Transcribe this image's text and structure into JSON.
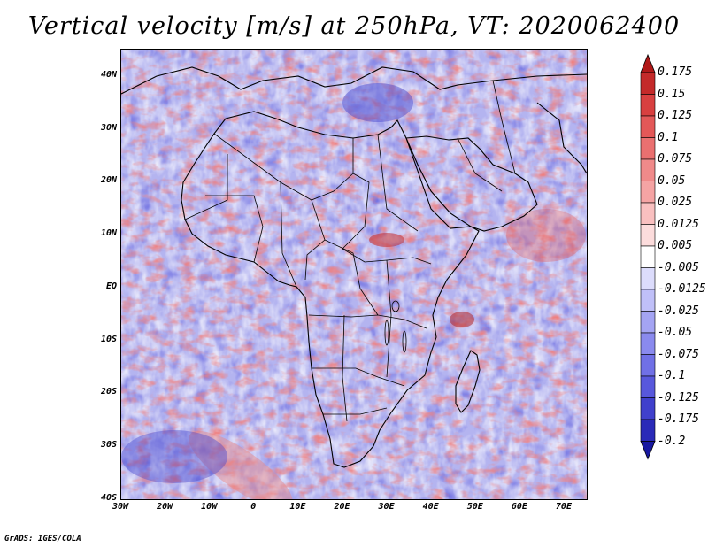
{
  "title": "Vertical velocity [m/s] at 250hPa, VT: 2020062400",
  "footer": "GrADS: IGES/COLA",
  "map": {
    "lat_labels": [
      "40N",
      "30N",
      "20N",
      "10N",
      "EQ",
      "10S",
      "20S",
      "30S",
      "40S"
    ],
    "lon_labels": [
      "30W",
      "20W",
      "10W",
      "0",
      "10E",
      "20E",
      "30E",
      "40E",
      "50E",
      "60E",
      "70E"
    ],
    "lat_range": [
      -40,
      45
    ],
    "lon_range": [
      -30,
      75
    ]
  },
  "colorbar": {
    "labels": [
      "0.175",
      "0.15",
      "0.125",
      "0.1",
      "0.075",
      "0.05",
      "0.025",
      "0.0125",
      "0.005",
      "-0.005",
      "-0.0125",
      "-0.025",
      "-0.05",
      "-0.075",
      "-0.1",
      "-0.125",
      "-0.175",
      "-0.2"
    ],
    "colors": [
      "#b01818",
      "#c42a2a",
      "#d84040",
      "#e35858",
      "#ea7070",
      "#f08a8a",
      "#f5a4a4",
      "#f9c0c0",
      "#fcdcdc",
      "#ffffff",
      "#dcdcfc",
      "#c0c0f8",
      "#a4a4f3",
      "#8a8aee",
      "#7070e6",
      "#5858dc",
      "#4040cc",
      "#2a2ab8",
      "#1818a0"
    ]
  }
}
